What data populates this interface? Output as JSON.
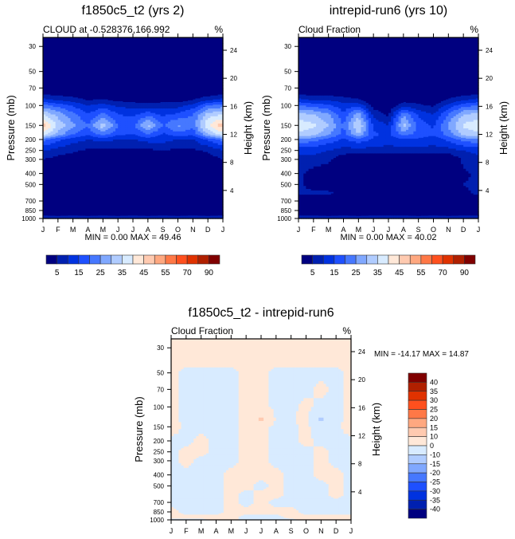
{
  "chart_data": [
    {
      "type": "heatmap",
      "id": "p1",
      "title": "f1850c5_t2 (yrs 2)",
      "left_label": "CLOUD at -0.528376,166.992",
      "units": "%",
      "ylabel": "Pressure (mb)",
      "ylabel_right": "Height (km)",
      "x_ticks": [
        "J",
        "F",
        "M",
        "A",
        "M",
        "J",
        "J",
        "A",
        "S",
        "O",
        "N",
        "D",
        "J"
      ],
      "y_ticks": [
        30,
        50,
        70,
        100,
        150,
        200,
        250,
        300,
        400,
        500,
        700,
        850,
        1000
      ],
      "y_ticks_right": [
        24,
        20,
        16,
        12,
        8,
        4
      ],
      "ylim": [
        1000,
        25
      ],
      "stats": "MIN =   0.00 MAX =  49.46",
      "pressure_levels": [
        25,
        50,
        70,
        80,
        90,
        100,
        120,
        150,
        180,
        200,
        250,
        300,
        400,
        500,
        600,
        700,
        850,
        925,
        950,
        1000
      ],
      "values": [
        [
          0,
          0,
          0,
          0,
          0,
          0,
          0,
          0,
          0,
          0,
          0,
          0,
          0
        ],
        [
          0,
          0,
          0,
          0,
          0,
          0,
          0,
          0,
          0,
          0,
          0,
          0,
          0
        ],
        [
          0,
          0,
          0,
          0,
          0,
          0,
          0,
          0,
          0,
          0,
          0,
          0,
          0
        ],
        [
          5,
          4,
          3,
          1,
          1,
          0,
          0,
          0,
          0,
          0,
          1,
          3,
          5
        ],
        [
          12,
          10,
          8,
          5,
          6,
          4,
          3,
          3,
          3,
          3,
          5,
          10,
          12
        ],
        [
          22,
          18,
          14,
          10,
          12,
          9,
          8,
          7,
          8,
          8,
          12,
          20,
          22
        ],
        [
          35,
          28,
          22,
          15,
          22,
          15,
          14,
          18,
          14,
          16,
          20,
          32,
          35
        ],
        [
          48,
          34,
          26,
          20,
          34,
          20,
          18,
          32,
          20,
          26,
          22,
          40,
          48
        ],
        [
          38,
          28,
          20,
          16,
          22,
          16,
          15,
          20,
          14,
          18,
          16,
          30,
          38
        ],
        [
          22,
          16,
          12,
          10,
          12,
          10,
          10,
          12,
          12,
          10,
          10,
          16,
          22
        ],
        [
          10,
          8,
          6,
          4,
          4,
          4,
          4,
          4,
          5,
          4,
          4,
          6,
          10
        ],
        [
          5,
          3,
          2,
          0,
          0,
          0,
          0,
          0,
          0,
          0,
          1,
          2,
          5
        ],
        [
          1,
          0,
          0,
          0,
          0,
          0,
          0,
          0,
          0,
          0,
          0,
          2,
          1
        ],
        [
          1,
          3,
          1,
          0,
          0,
          0,
          0,
          0,
          0,
          0,
          0,
          4,
          1
        ],
        [
          0,
          1,
          0,
          0,
          0,
          0,
          0,
          0,
          0,
          0,
          0,
          1,
          0
        ],
        [
          0,
          0,
          0,
          0,
          0,
          0,
          0,
          0,
          0,
          0,
          0,
          0,
          0
        ],
        [
          0,
          0,
          0,
          0,
          0,
          0,
          0,
          0,
          0,
          0,
          0,
          0,
          0
        ],
        [
          3,
          3,
          3,
          3,
          3,
          3,
          3,
          3,
          3,
          3,
          3,
          3,
          3
        ],
        [
          6,
          5,
          6,
          5,
          6,
          5,
          6,
          5,
          6,
          5,
          6,
          5,
          6
        ],
        [
          8,
          8,
          8,
          8,
          8,
          8,
          8,
          8,
          8,
          8,
          8,
          8,
          8
        ]
      ]
    },
    {
      "type": "heatmap",
      "id": "p2",
      "title": "intrepid-run6 (yrs 10)",
      "left_label": "Cloud Fraction",
      "units": "%",
      "ylabel": "Pressure (mb)",
      "ylabel_right": "Height (km)",
      "x_ticks": [
        "J",
        "F",
        "M",
        "A",
        "M",
        "J",
        "J",
        "A",
        "S",
        "O",
        "N",
        "D",
        "J"
      ],
      "y_ticks": [
        30,
        50,
        70,
        100,
        150,
        200,
        250,
        300,
        400,
        500,
        700,
        850,
        1000
      ],
      "y_ticks_right": [
        24,
        20,
        16,
        12,
        8,
        4
      ],
      "ylim": [
        1000,
        25
      ],
      "stats": "MIN =   0.00 MAX =  40.02",
      "pressure_levels": [
        25,
        50,
        70,
        80,
        90,
        100,
        120,
        150,
        180,
        200,
        250,
        300,
        400,
        500,
        600,
        700,
        850,
        925,
        950,
        1000
      ],
      "values": [
        [
          0,
          0,
          0,
          0,
          0,
          0,
          0,
          0,
          0,
          0,
          0,
          0,
          0
        ],
        [
          0,
          0,
          0,
          0,
          0,
          0,
          0,
          0,
          0,
          0,
          0,
          0,
          0
        ],
        [
          0,
          0,
          0,
          0,
          0,
          0,
          0,
          0,
          0,
          0,
          0,
          0,
          0
        ],
        [
          5,
          4,
          4,
          3,
          2,
          0,
          0,
          1,
          1,
          0,
          2,
          4,
          5
        ],
        [
          12,
          10,
          10,
          8,
          6,
          1,
          0,
          3,
          3,
          1,
          6,
          10,
          12
        ],
        [
          20,
          18,
          16,
          12,
          14,
          3,
          1,
          8,
          6,
          4,
          12,
          18,
          20
        ],
        [
          32,
          30,
          26,
          16,
          28,
          8,
          4,
          24,
          14,
          10,
          20,
          30,
          32
        ],
        [
          38,
          36,
          30,
          20,
          36,
          14,
          10,
          32,
          18,
          14,
          26,
          36,
          38
        ],
        [
          34,
          32,
          26,
          18,
          30,
          16,
          14,
          22,
          18,
          16,
          22,
          32,
          34
        ],
        [
          24,
          22,
          18,
          14,
          18,
          14,
          12,
          14,
          14,
          12,
          16,
          22,
          24
        ],
        [
          12,
          12,
          10,
          8,
          8,
          8,
          8,
          8,
          8,
          8,
          8,
          10,
          12
        ],
        [
          8,
          8,
          6,
          1,
          0,
          0,
          0,
          0,
          0,
          0,
          0,
          6,
          8
        ],
        [
          6,
          3,
          2,
          3,
          0,
          0,
          0,
          0,
          0,
          0,
          1,
          4,
          6
        ],
        [
          6,
          3,
          2,
          5,
          0,
          0,
          0,
          0,
          0,
          0,
          2,
          5,
          6
        ],
        [
          6,
          6,
          6,
          3,
          0,
          0,
          0,
          0,
          0,
          0,
          0,
          4,
          6
        ],
        [
          0,
          0,
          0,
          0,
          0,
          0,
          0,
          0,
          0,
          0,
          0,
          0,
          0
        ],
        [
          0,
          0,
          0,
          0,
          0,
          0,
          0,
          0,
          0,
          0,
          0,
          0,
          0
        ],
        [
          3,
          3,
          3,
          3,
          3,
          3,
          3,
          3,
          3,
          3,
          3,
          3,
          3
        ],
        [
          6,
          6,
          5,
          6,
          5,
          6,
          6,
          6,
          5,
          6,
          5,
          6,
          6
        ],
        [
          8,
          8,
          8,
          8,
          8,
          8,
          8,
          8,
          8,
          8,
          8,
          8,
          8
        ]
      ]
    },
    {
      "type": "heatmap",
      "id": "p3",
      "title": "f1850c5_t2 - intrepid-run6",
      "left_label": "Cloud Fraction",
      "units": "%",
      "ylabel": "Pressure (mb)",
      "ylabel_right": "Height (km)",
      "x_ticks": [
        "J",
        "F",
        "M",
        "A",
        "M",
        "J",
        "J",
        "A",
        "S",
        "O",
        "N",
        "D",
        "J"
      ],
      "y_ticks": [
        30,
        50,
        70,
        100,
        150,
        200,
        250,
        300,
        400,
        500,
        700,
        850,
        1000
      ],
      "y_ticks_right": [
        24,
        20,
        16,
        12,
        8,
        4
      ],
      "ylim": [
        1000,
        25
      ],
      "stats": "MIN = -14.17 MAX =  14.87",
      "pressure_levels": [
        25,
        40,
        50,
        70,
        100,
        130,
        150,
        200,
        250,
        300,
        400,
        500,
        600,
        700,
        850,
        950,
        1000
      ],
      "values": [
        [
          1,
          1,
          1,
          1,
          1,
          1,
          1,
          1,
          1,
          1,
          1,
          1,
          1
        ],
        [
          1,
          1,
          1,
          1,
          1,
          1,
          1,
          1,
          1,
          1,
          1,
          1,
          1
        ],
        [
          1,
          -1,
          -1,
          -1,
          -1,
          1,
          1,
          -1,
          -1,
          -1,
          -1,
          -1,
          1
        ],
        [
          1,
          -1,
          -1,
          -1,
          -1,
          1,
          1,
          -1,
          -1,
          -1,
          1,
          -1,
          1
        ],
        [
          1,
          -1,
          -1,
          -1,
          -1,
          1,
          1,
          -1,
          -1,
          1,
          -1,
          -1,
          1
        ],
        [
          1,
          -1,
          -1,
          -1,
          -1,
          1,
          12,
          -1,
          -1,
          2,
          -12,
          -1,
          1
        ],
        [
          2,
          -1,
          -1,
          -1,
          -1,
          1,
          1,
          -1,
          -1,
          1,
          -3,
          -1,
          2
        ],
        [
          -1,
          -1,
          1,
          -1,
          -1,
          1,
          1,
          -1,
          -1,
          1,
          -1,
          -1,
          -1
        ],
        [
          -1,
          1,
          1,
          -1,
          -1,
          1,
          1,
          -1,
          -1,
          -1,
          1,
          -1,
          -3
        ],
        [
          -1,
          1,
          -1,
          -1,
          -1,
          1,
          1,
          -1,
          -1,
          -1,
          1,
          -1,
          -1
        ],
        [
          -1,
          -1,
          -1,
          -1,
          1,
          1,
          1,
          1,
          -1,
          -1,
          1,
          1,
          -1
        ],
        [
          -1,
          -1,
          -1,
          -1,
          1,
          1,
          -1,
          1,
          -1,
          -1,
          -1,
          1,
          -1
        ],
        [
          -1,
          -1,
          -1,
          -1,
          1,
          -1,
          1,
          1,
          -1,
          -1,
          -1,
          1,
          -1
        ],
        [
          -1,
          -1,
          -1,
          -1,
          1,
          -1,
          1,
          -1,
          -1,
          -1,
          -1,
          -1,
          -1
        ],
        [
          1,
          -1,
          -1,
          -1,
          1,
          1,
          1,
          1,
          1,
          -1,
          -1,
          -1,
          -1
        ],
        [
          1,
          1,
          1,
          1,
          1,
          -1,
          -1,
          -1,
          1,
          1,
          1,
          1,
          1
        ],
        [
          -1,
          -1,
          -1,
          1,
          1,
          -1,
          -1,
          -1,
          -1,
          1,
          1,
          1,
          1
        ]
      ]
    }
  ],
  "colorbars": {
    "top": {
      "colors": [
        "#000080",
        "#0020b0",
        "#0032e0",
        "#1e50ff",
        "#4678ff",
        "#80a8ff",
        "#b0ccff",
        "#d8ebff",
        "#ffe8d8",
        "#ffcab0",
        "#ffa880",
        "#ff7846",
        "#ff501e",
        "#e03200",
        "#b02000",
        "#800000"
      ],
      "levels": [
        5,
        10,
        15,
        20,
        25,
        30,
        35,
        40,
        45,
        50,
        55,
        60,
        70,
        80,
        90
      ],
      "labels": [
        "5",
        "15",
        "25",
        "35",
        "45",
        "55",
        "70",
        "90"
      ]
    },
    "diff": {
      "colors": [
        "#000080",
        "#0020b0",
        "#0032e0",
        "#1e50ff",
        "#4678ff",
        "#80a8ff",
        "#b0ccff",
        "#d8ebff",
        "#ffe8d8",
        "#ffcab0",
        "#ffa880",
        "#ff7846",
        "#ff501e",
        "#e03200",
        "#b02000",
        "#800000"
      ],
      "levels": [
        -40,
        -35,
        -30,
        -25,
        -20,
        -15,
        -10,
        0,
        10,
        15,
        20,
        25,
        30,
        35,
        40
      ],
      "labels": [
        "40",
        "35",
        "30",
        "25",
        "20",
        "15",
        "10",
        "0",
        "-10",
        "-15",
        "-20",
        "-25",
        "-30",
        "-35",
        "-40"
      ]
    }
  }
}
